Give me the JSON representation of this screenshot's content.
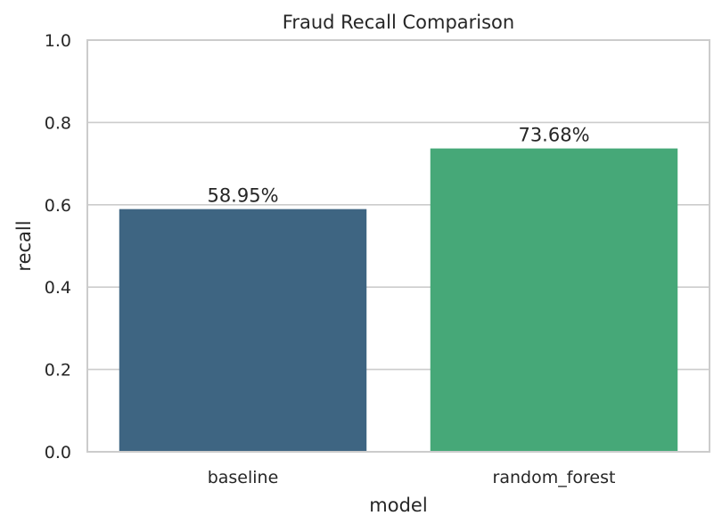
{
  "chart_data": {
    "type": "bar",
    "title": "Fraud Recall Comparison",
    "xlabel": "model",
    "ylabel": "recall",
    "categories": [
      "baseline",
      "random_forest"
    ],
    "values": [
      0.5895,
      0.7368
    ],
    "data_labels": [
      "58.95%",
      "73.68%"
    ],
    "bar_colors": [
      "#3e6582",
      "#46a878"
    ],
    "ylim": [
      0,
      1.0
    ],
    "yticks": [
      0.0,
      0.2,
      0.4,
      0.6,
      0.8,
      1.0
    ],
    "ytick_labels": [
      "0.0",
      "0.2",
      "0.4",
      "0.6",
      "0.8",
      "1.0"
    ],
    "grid": "horizontal",
    "grid_color": "#cccccc",
    "axes_color": "#cccccc",
    "legend": false
  }
}
